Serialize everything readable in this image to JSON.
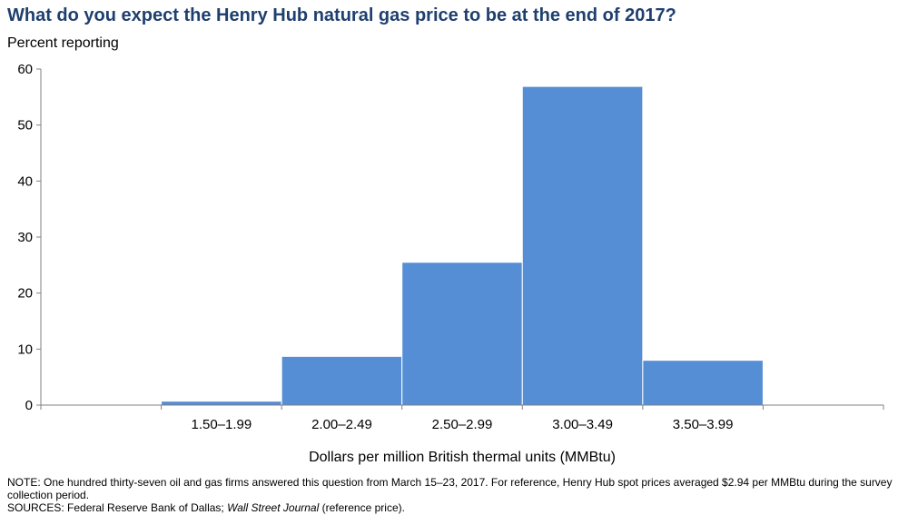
{
  "chart_data": {
    "type": "bar",
    "title": "What do you expect the Henry Hub natural gas price to be at the end of 2017?",
    "ylabel": "Percent reporting",
    "xlabel": "Dollars per million British thermal units (MMBtu)",
    "categories": [
      "",
      "1.50–1.99",
      "2.00–2.49",
      "2.50–2.99",
      "3.00–3.49",
      "3.50–3.99",
      ""
    ],
    "values": [
      0,
      0.7,
      8.7,
      25.5,
      56.9,
      8.0,
      0
    ],
    "ylim": [
      0,
      60
    ],
    "yticks": [
      0,
      10,
      20,
      30,
      40,
      50,
      60
    ],
    "grid": false,
    "bar_color": "#558ed5",
    "axis_color": "#808080"
  },
  "notes": {
    "note": "NOTE: One hundred thirty-seven oil and gas firms answered this question from March 15–23, 2017. For reference, Henry Hub spot prices averaged $2.94 per MMBtu during the survey collection period.",
    "sources_prefix": "SOURCES: Federal Reserve Bank of Dallas; ",
    "sources_italic": "Wall Street Journal",
    "sources_suffix": " (reference price)."
  }
}
